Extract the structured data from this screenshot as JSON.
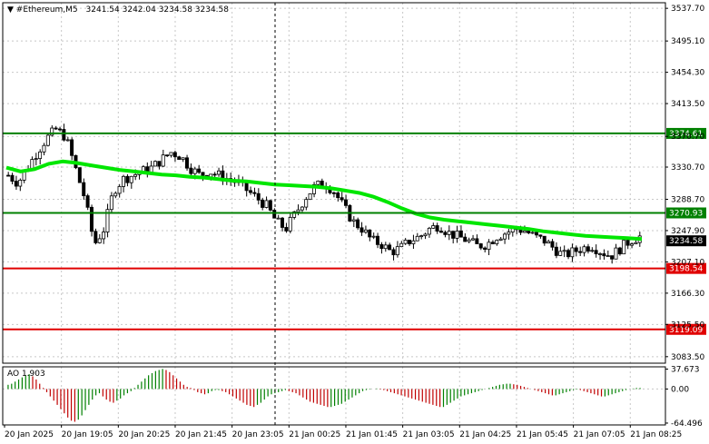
{
  "header": {
    "symbol": "#Ethereum,M5",
    "ohlc": "3241.54 3242.04 3234.58 3234.58"
  },
  "colors": {
    "bull": "#ffffff",
    "bear": "#000000",
    "ma": "#00e600",
    "green_level": "#008000",
    "red_level": "#e00000",
    "ao_up": "#008000",
    "ao_down": "#c00000",
    "grid": "#c8c8c8",
    "vline": "#000000"
  },
  "chart_data": [
    {
      "type": "candlestick",
      "name": "main",
      "ylim": [
        3075,
        3545
      ],
      "y_ticks": [
        "3537.70",
        "3495.10",
        "3454.30",
        "3413.50",
        "3370.70",
        "3330.70",
        "3288.70",
        "3247.90",
        "3207.10",
        "3166.30",
        "3125.50",
        "3083.50"
      ],
      "y_tick_values": [
        3537.7,
        3495.1,
        3454.3,
        3413.5,
        3370.7,
        3330.7,
        3288.7,
        3247.9,
        3207.1,
        3166.3,
        3125.5,
        3083.5
      ],
      "levels": [
        {
          "label": "3374.61",
          "value": 3374.61,
          "color": "green"
        },
        {
          "label": "3270.93",
          "value": 3270.93,
          "color": "green"
        },
        {
          "label": "3198.54",
          "value": 3198.54,
          "color": "red"
        },
        {
          "label": "3119.09",
          "value": 3119.09,
          "color": "red"
        }
      ],
      "current_price": {
        "label": "3234.58",
        "value": 3234.58
      },
      "close_path": [
        3320,
        3310,
        3330,
        3350,
        3368,
        3380,
        3370,
        3330,
        3290,
        3230,
        3250,
        3300,
        3315,
        3320,
        3325,
        3330,
        3340,
        3350,
        3345,
        3330,
        3320,
        3325,
        3320,
        3315,
        3310,
        3300,
        3290,
        3280,
        3260,
        3250,
        3270,
        3290,
        3305,
        3310,
        3300,
        3280,
        3260,
        3250,
        3235,
        3230,
        3220,
        3225,
        3235,
        3240,
        3250,
        3255,
        3245,
        3240,
        3235,
        3228,
        3230,
        3240,
        3245,
        3250,
        3248,
        3240,
        3235,
        3225,
        3215,
        3220,
        3225,
        3228,
        3220,
        3215,
        3225,
        3235,
        3240
      ],
      "ma_path": [
        3330,
        3325,
        3328,
        3335,
        3338,
        3336,
        3333,
        3330,
        3327,
        3325,
        3323,
        3321,
        3320,
        3318,
        3317,
        3315,
        3313,
        3312,
        3310,
        3308,
        3307,
        3306,
        3305,
        3303,
        3300,
        3297,
        3292,
        3285,
        3277,
        3270,
        3265,
        3262,
        3260,
        3258,
        3256,
        3254,
        3252,
        3250,
        3247,
        3245,
        3243,
        3241,
        3240,
        3239,
        3238,
        3237
      ]
    },
    {
      "type": "bar",
      "name": "AO",
      "title": "AO 1.903",
      "ylim": [
        -68,
        42
      ],
      "y_ticks": [
        "37.673",
        "0.00",
        "-64.496"
      ],
      "y_tick_values": [
        37.673,
        0,
        -64.496
      ],
      "values": [
        8,
        10,
        14,
        18,
        22,
        26,
        28,
        24,
        18,
        10,
        2,
        -6,
        -14,
        -22,
        -30,
        -38,
        -46,
        -54,
        -60,
        -62,
        -58,
        -50,
        -40,
        -30,
        -20,
        -12,
        -8,
        -14,
        -20,
        -24,
        -26,
        -22,
        -18,
        -12,
        -8,
        -4,
        2,
        8,
        14,
        20,
        26,
        30,
        34,
        36,
        38,
        36,
        32,
        26,
        20,
        14,
        8,
        4,
        2,
        -2,
        -6,
        -8,
        -10,
        -8,
        -4,
        -2,
        -2,
        -4,
        -6,
        -10,
        -14,
        -18,
        -22,
        -26,
        -30,
        -32,
        -34,
        -30,
        -26,
        -20,
        -14,
        -10,
        -8,
        -6,
        -4,
        -2,
        -4,
        -6,
        -8,
        -12,
        -16,
        -20,
        -24,
        -26,
        -28,
        -30,
        -32,
        -34,
        -34,
        -32,
        -30,
        -28,
        -24,
        -20,
        -16,
        -12,
        -8,
        -4,
        -2,
        -1,
        0,
        1,
        -1,
        -2,
        -4,
        -6,
        -8,
        -10,
        -12,
        -14,
        -16,
        -18,
        -20,
        -22,
        -24,
        -26,
        -28,
        -30,
        -32,
        -34,
        -34,
        -30,
        -26,
        -22,
        -18,
        -14,
        -12,
        -10,
        -8,
        -6,
        -4,
        -2,
        0,
        2,
        4,
        6,
        8,
        9,
        10,
        10,
        9,
        8,
        6,
        4,
        2,
        0,
        -2,
        -4,
        -6,
        -8,
        -10,
        -12,
        -12,
        -10,
        -8,
        -6,
        -4,
        -2,
        -1,
        -2,
        -4,
        -6,
        -8,
        -10,
        -12,
        -14,
        -14,
        -12,
        -10,
        -8,
        -6,
        -4,
        -2,
        0,
        1,
        2,
        2
      ]
    }
  ],
  "x_ticks": [
    "20 Jan 2025",
    "20 Jan 19:05",
    "20 Jan 20:25",
    "20 Jan 21:45",
    "20 Jan 23:05",
    "21 Jan 00:25",
    "21 Jan 01:45",
    "21 Jan 03:05",
    "21 Jan 04:25",
    "21 Jan 05:45",
    "21 Jan 07:05",
    "21 Jan 08:25"
  ]
}
